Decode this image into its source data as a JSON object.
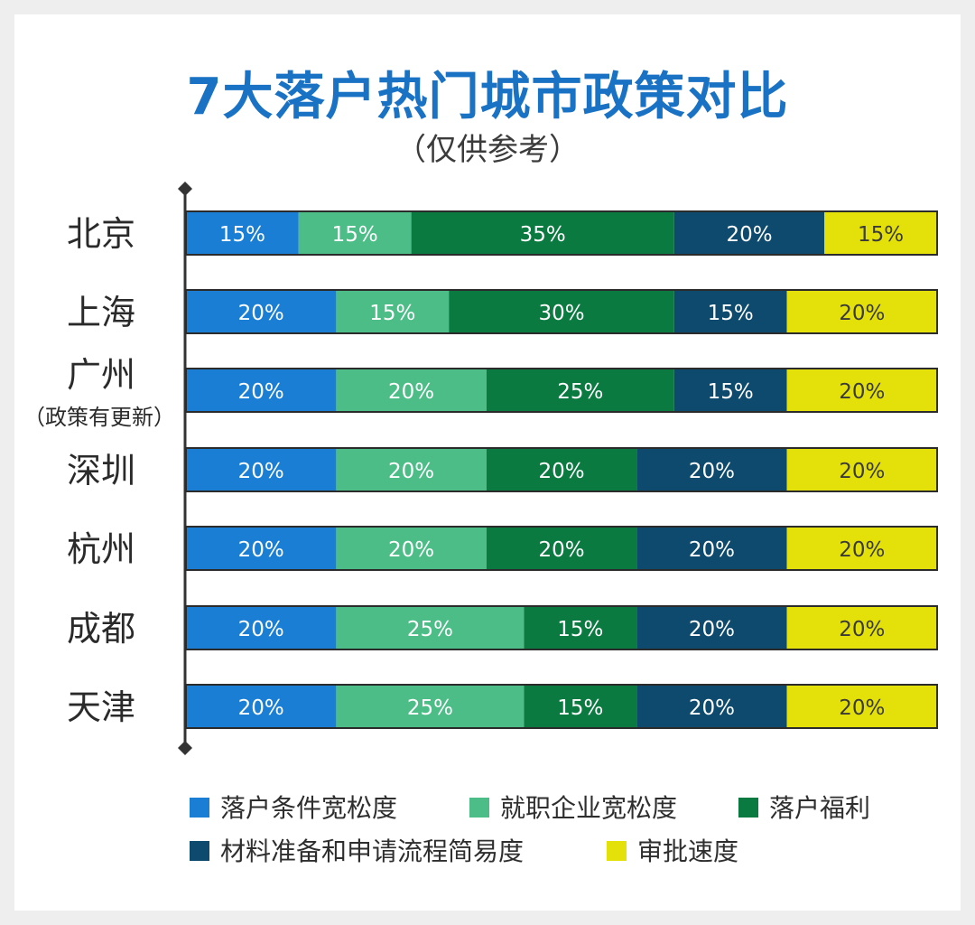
{
  "colors": {
    "title": "#1a72c4",
    "background": "#ffffff",
    "outer": "#eeeeee",
    "axis": "#333333"
  },
  "chart_data": {
    "type": "bar",
    "orientation": "horizontal",
    "stacked": true,
    "title": "7大落户热门城市政策对比",
    "subtitle": "（仅供参考）",
    "categories": [
      "北京",
      "上海",
      "广州",
      "深圳",
      "杭州",
      "成都",
      "天津"
    ],
    "category_notes": [
      "",
      "",
      "（政策有更新）",
      "",
      "",
      "",
      ""
    ],
    "series": [
      {
        "name": "落户条件宽松度",
        "color": "#1a7fd4",
        "text_color": "#ffffff",
        "values": [
          15,
          20,
          20,
          20,
          20,
          20,
          20
        ]
      },
      {
        "name": "就职企业宽松度",
        "color": "#4cbd86",
        "text_color": "#ffffff",
        "values": [
          15,
          15,
          20,
          20,
          20,
          25,
          25
        ]
      },
      {
        "name": "落户福利",
        "color": "#0a7a40",
        "text_color": "#ffffff",
        "values": [
          35,
          30,
          25,
          20,
          20,
          15,
          15
        ]
      },
      {
        "name": "材料准备和申请流程简易度",
        "color": "#0e4a6e",
        "text_color": "#ffffff",
        "values": [
          20,
          15,
          15,
          20,
          20,
          20,
          20
        ]
      },
      {
        "name": "审批速度",
        "color": "#e4e10a",
        "text_color": "#3a3a3a",
        "values": [
          15,
          20,
          20,
          20,
          20,
          20,
          20
        ]
      }
    ],
    "value_format": "percent",
    "xlim": [
      0,
      100
    ],
    "legend_position": "bottom",
    "grid": false
  }
}
